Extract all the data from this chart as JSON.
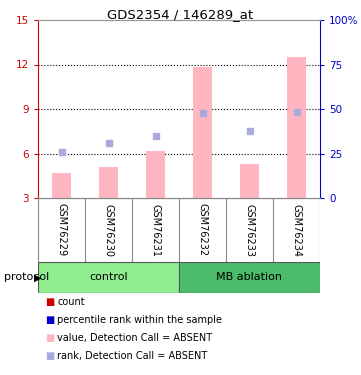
{
  "title": "GDS2354 / 146289_at",
  "samples": [
    "GSM76229",
    "GSM76230",
    "GSM76231",
    "GSM76232",
    "GSM76233",
    "GSM76234"
  ],
  "group_colors": {
    "control": "#90EE90",
    "MB ablation": "#4CBB6A"
  },
  "ylim_left": [
    3,
    15
  ],
  "ylim_right": [
    0,
    100
  ],
  "yticks_left": [
    3,
    6,
    9,
    12,
    15
  ],
  "ytick_labels_left": [
    "3",
    "6",
    "9",
    "12",
    "15"
  ],
  "yticks_right": [
    0,
    25,
    50,
    75,
    100
  ],
  "ytick_labels_right": [
    "0",
    "25",
    "50",
    "75",
    "100%"
  ],
  "bar_values": [
    4.7,
    5.1,
    6.2,
    11.85,
    5.3,
    12.5
  ],
  "rank_values": [
    6.1,
    6.7,
    7.2,
    8.7,
    7.5,
    8.8
  ],
  "bar_color_absent": "#FFB6C1",
  "rank_color_absent": "#AAAADD",
  "bar_bottom": 3,
  "left_axis_color": "#CC0000",
  "right_axis_color": "#0000CC",
  "bg_color": "#ffffff",
  "sample_box_color": "#D3D3D3",
  "sample_box_edge": "#888888",
  "legend_items": [
    {
      "label": "count",
      "color": "#CC0000"
    },
    {
      "label": "percentile rank within the sample",
      "color": "#0000CC"
    },
    {
      "label": "value, Detection Call = ABSENT",
      "color": "#FFB6C1"
    },
    {
      "label": "rank, Detection Call = ABSENT",
      "color": "#AAAADD"
    }
  ]
}
